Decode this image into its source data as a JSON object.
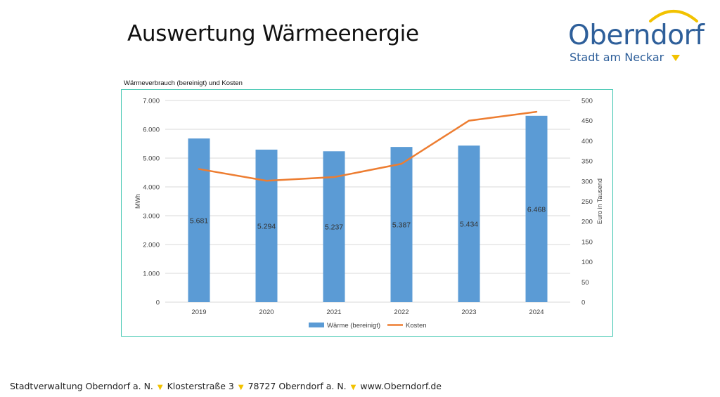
{
  "slide": {
    "title": "Auswertung Wärmeenergie"
  },
  "logo": {
    "name": "Oberndorf",
    "subtitle": "Stadt am Neckar",
    "accent_color": "#f2c200",
    "text_color": "#2e5f9a"
  },
  "chart_heading": "Wärmeverbrauch (bereinigt) und Kosten",
  "footer": {
    "parts": [
      "Stadtverwaltung Oberndorf a. N.",
      "Klosterstraße 3",
      "78727 Oberndorf a. N.",
      "www.Oberndorf.de"
    ],
    "separator_color": "#f2c200"
  },
  "chart_data": {
    "type": "bar",
    "categories": [
      "2019",
      "2020",
      "2021",
      "2022",
      "2023",
      "2024"
    ],
    "series": [
      {
        "name": "Wärme (bereinigt)",
        "type": "bar",
        "axis": "left",
        "color": "#5b9bd5",
        "values": [
          5681,
          5294,
          5237,
          5387,
          5434,
          6468
        ],
        "labels": [
          "5.681",
          "5.294",
          "5.237",
          "5.387",
          "5.434",
          "6.468"
        ]
      },
      {
        "name": "Kosten",
        "type": "line",
        "axis": "right",
        "color": "#ed7d31",
        "values": [
          330,
          301,
          310,
          343,
          450,
          472
        ]
      }
    ],
    "y_left": {
      "label": "MWh",
      "min": 0,
      "max": 7000,
      "step": 1000,
      "tick_labels": [
        "0",
        "1.000",
        "2.000",
        "3.000",
        "4.000",
        "5.000",
        "6.000",
        "7.000"
      ]
    },
    "y_right": {
      "label": "Euro in Tausend",
      "min": 0,
      "max": 500,
      "step": 50,
      "tick_labels": [
        "0",
        "50",
        "100",
        "150",
        "200",
        "250",
        "300",
        "350",
        "400",
        "450",
        "500"
      ]
    },
    "grid": true,
    "legend_position": "bottom"
  }
}
